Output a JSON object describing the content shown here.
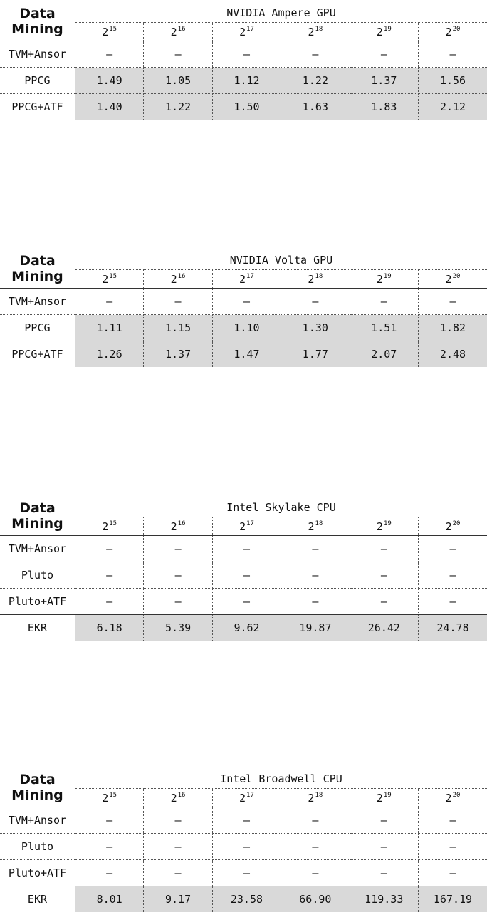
{
  "tables": [
    {
      "corner": [
        "Data",
        "Mining"
      ],
      "title": "NVIDIA Ampere GPU",
      "base": "2",
      "exponents": [
        "15",
        "16",
        "17",
        "18",
        "19",
        "20"
      ],
      "rows": [
        {
          "label": "TVM+Ansor",
          "highlight": false,
          "values": [
            "–",
            "–",
            "–",
            "–",
            "–",
            "–"
          ]
        },
        {
          "label": "PPCG",
          "highlight": true,
          "values": [
            "1.49",
            "1.05",
            "1.12",
            "1.22",
            "1.37",
            "1.56"
          ]
        },
        {
          "label": "PPCG+ATF",
          "highlight": true,
          "values": [
            "1.40",
            "1.22",
            "1.50",
            "1.63",
            "1.83",
            "2.12"
          ]
        }
      ]
    },
    {
      "corner": [
        "Data",
        "Mining"
      ],
      "title": "NVIDIA Volta GPU",
      "base": "2",
      "exponents": [
        "15",
        "16",
        "17",
        "18",
        "19",
        "20"
      ],
      "rows": [
        {
          "label": "TVM+Ansor",
          "highlight": false,
          "values": [
            "–",
            "–",
            "–",
            "–",
            "–",
            "–"
          ]
        },
        {
          "label": "PPCG",
          "highlight": true,
          "values": [
            "1.11",
            "1.15",
            "1.10",
            "1.30",
            "1.51",
            "1.82"
          ]
        },
        {
          "label": "PPCG+ATF",
          "highlight": true,
          "values": [
            "1.26",
            "1.37",
            "1.47",
            "1.77",
            "2.07",
            "2.48"
          ]
        }
      ]
    },
    {
      "corner": [
        "Data",
        "Mining"
      ],
      "title": "Intel Skylake CPU",
      "base": "2",
      "exponents": [
        "15",
        "16",
        "17",
        "18",
        "19",
        "20"
      ],
      "rows": [
        {
          "label": "TVM+Ansor",
          "highlight": false,
          "values": [
            "–",
            "–",
            "–",
            "–",
            "–",
            "–"
          ]
        },
        {
          "label": "Pluto",
          "highlight": false,
          "values": [
            "–",
            "–",
            "–",
            "–",
            "–",
            "–"
          ]
        },
        {
          "label": "Pluto+ATF",
          "highlight": false,
          "values": [
            "–",
            "–",
            "–",
            "–",
            "–",
            "–"
          ]
        },
        {
          "label": "EKR",
          "highlight": true,
          "solidTop": true,
          "values": [
            "6.18",
            "5.39",
            "9.62",
            "19.87",
            "26.42",
            "24.78"
          ]
        }
      ]
    },
    {
      "corner": [
        "Data",
        "Mining"
      ],
      "title": "Intel Broadwell CPU",
      "base": "2",
      "exponents": [
        "15",
        "16",
        "17",
        "18",
        "19",
        "20"
      ],
      "rows": [
        {
          "label": "TVM+Ansor",
          "highlight": false,
          "values": [
            "–",
            "–",
            "–",
            "–",
            "–",
            "–"
          ]
        },
        {
          "label": "Pluto",
          "highlight": false,
          "values": [
            "–",
            "–",
            "–",
            "–",
            "–",
            "–"
          ]
        },
        {
          "label": "Pluto+ATF",
          "highlight": false,
          "values": [
            "–",
            "–",
            "–",
            "–",
            "–",
            "–"
          ]
        },
        {
          "label": "EKR",
          "highlight": true,
          "solidTop": true,
          "values": [
            "8.01",
            "9.17",
            "23.58",
            "66.90",
            "119.33",
            "167.19"
          ]
        }
      ]
    }
  ],
  "colors": {
    "highlight": "#d9d9d9",
    "text": "#111111",
    "rule": "#333333"
  }
}
